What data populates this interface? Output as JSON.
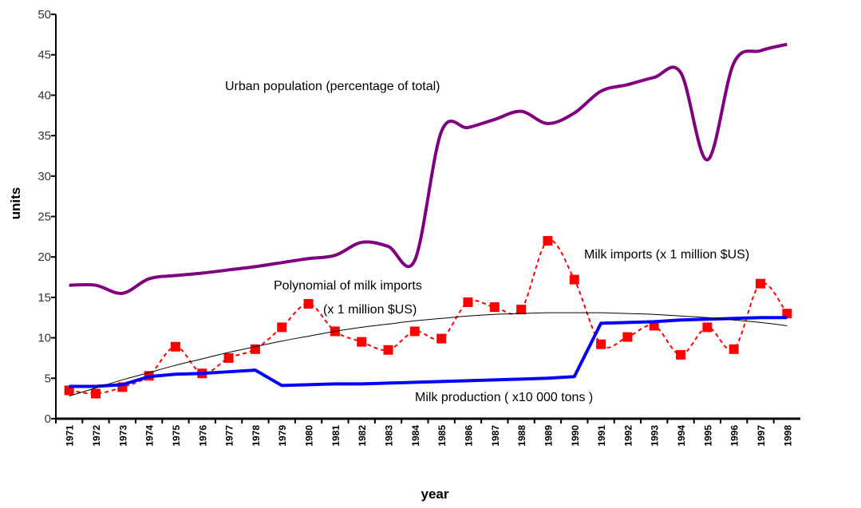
{
  "chart_data": {
    "type": "line",
    "x_label": "year",
    "y_label": "units",
    "categories": [
      "1971",
      "1972",
      "1973",
      "1974",
      "1975",
      "1976",
      "1977",
      "1978",
      "1979",
      "1980",
      "1981",
      "1982",
      "1983",
      "1984",
      "1985",
      "1986",
      "1987",
      "1988",
      "1989",
      "1990",
      "1991",
      "1992",
      "1993",
      "1994",
      "1995",
      "1996",
      "1997",
      "1998"
    ],
    "ylim": [
      0,
      50
    ],
    "yticks": [
      0,
      5,
      10,
      15,
      20,
      25,
      30,
      35,
      40,
      45,
      50
    ],
    "series": [
      {
        "name": "Urban population (percentage of total)",
        "color": "#800080",
        "style": "smooth",
        "values": [
          16.5,
          16.5,
          15.5,
          17.3,
          17.7,
          18,
          18.4,
          18.8,
          19.3,
          19.8,
          20.2,
          21.8,
          21.3,
          19.6,
          35.5,
          36,
          37,
          38,
          36.5,
          37.8,
          40.5,
          41.3,
          42.2,
          42.8,
          32,
          44,
          45.5,
          46.3
        ]
      },
      {
        "name": "Milk imports (x 1 million $US)",
        "color": "#ff0000",
        "style": "dashed-markers",
        "values": [
          3.5,
          3.1,
          3.9,
          5.3,
          8.9,
          5.6,
          7.5,
          8.6,
          11.3,
          14.2,
          10.8,
          9.5,
          8.5,
          10.8,
          9.9,
          14.4,
          13.8,
          13.5,
          22,
          17.2,
          9.2,
          10.1,
          11.5,
          7.9,
          11.3,
          8.6,
          16.7,
          13
        ]
      },
      {
        "name": "Milk production ( x10 000 tons )",
        "color": "#0000ff",
        "style": "thick",
        "values": [
          4,
          4,
          4.2,
          5.2,
          5.5,
          5.6,
          5.8,
          6,
          4.1,
          4.2,
          4.3,
          4.3,
          4.4,
          4.5,
          4.6,
          4.7,
          4.8,
          4.9,
          5,
          5.2,
          11.8,
          11.9,
          12,
          12.2,
          12.3,
          12.4,
          12.5,
          12.5
        ]
      },
      {
        "label_lines": [
          "Polynomial of milk imports",
          "(x 1 million $US)"
        ],
        "color": "#000000",
        "style": "thin",
        "values": [
          2.8,
          3.8,
          4.8,
          5.7,
          6.6,
          7.4,
          8.2,
          8.9,
          9.6,
          10.2,
          10.8,
          11.3,
          11.7,
          12.1,
          12.4,
          12.7,
          12.9,
          13.0,
          13.1,
          13.1,
          13.1,
          13.0,
          12.9,
          12.7,
          12.5,
          12.2,
          11.9,
          11.5
        ]
      }
    ]
  }
}
